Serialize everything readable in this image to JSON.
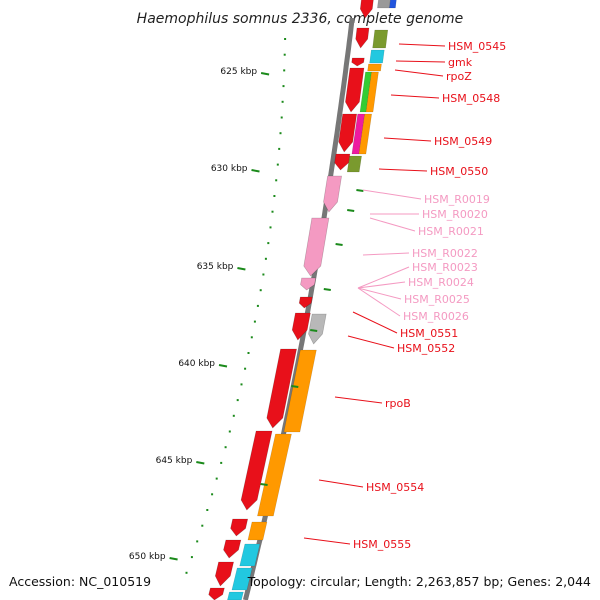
{
  "title": "Haemophilus somnus 2336, complete genome",
  "footer": {
    "accession": "Accession: NC_010519",
    "summary": "Topology: circular; Length: 2,263,857 bp; Genes: 2,044"
  },
  "scale_ticks": [
    "625 kbp",
    "630 kbp",
    "635 kbp",
    "640 kbp",
    "645 kbp",
    "650 kbp"
  ],
  "colors": {
    "protein": "#e8101a",
    "rna": "#f49ac2",
    "pseudo": "#b8b8b8",
    "ring": "#777777",
    "green_marks": "#1b8a1b",
    "cat_orange": "#ff9900",
    "cat_green": "#33cc33",
    "cat_olive": "#7a9a2e",
    "cat_cyan": "#22c8e0",
    "cat_magenta": "#ee1aa0",
    "cat_blue": "#2255dd"
  },
  "gene_labels": [
    {
      "text": "HSM_0545",
      "kind": "protein"
    },
    {
      "text": "gmk",
      "kind": "protein"
    },
    {
      "text": "rpoZ",
      "kind": "protein"
    },
    {
      "text": "HSM_0548",
      "kind": "protein"
    },
    {
      "text": "HSM_0549",
      "kind": "protein"
    },
    {
      "text": "HSM_0550",
      "kind": "protein"
    },
    {
      "text": "HSM_R0019",
      "kind": "rna"
    },
    {
      "text": "HSM_R0020",
      "kind": "rna"
    },
    {
      "text": "HSM_R0021",
      "kind": "rna"
    },
    {
      "text": "HSM_R0022",
      "kind": "rna"
    },
    {
      "text": "HSM_R0023",
      "kind": "rna"
    },
    {
      "text": "HSM_R0024",
      "kind": "rna"
    },
    {
      "text": "HSM_R0025",
      "kind": "rna"
    },
    {
      "text": "HSM_R0026",
      "kind": "rna"
    },
    {
      "text": "HSM_0551",
      "kind": "protein"
    },
    {
      "text": "HSM_0552",
      "kind": "protein"
    },
    {
      "text": "rpoB",
      "kind": "protein"
    },
    {
      "text": "HSM_0554",
      "kind": "protein"
    },
    {
      "text": "HSM_0555",
      "kind": "protein"
    }
  ]
}
